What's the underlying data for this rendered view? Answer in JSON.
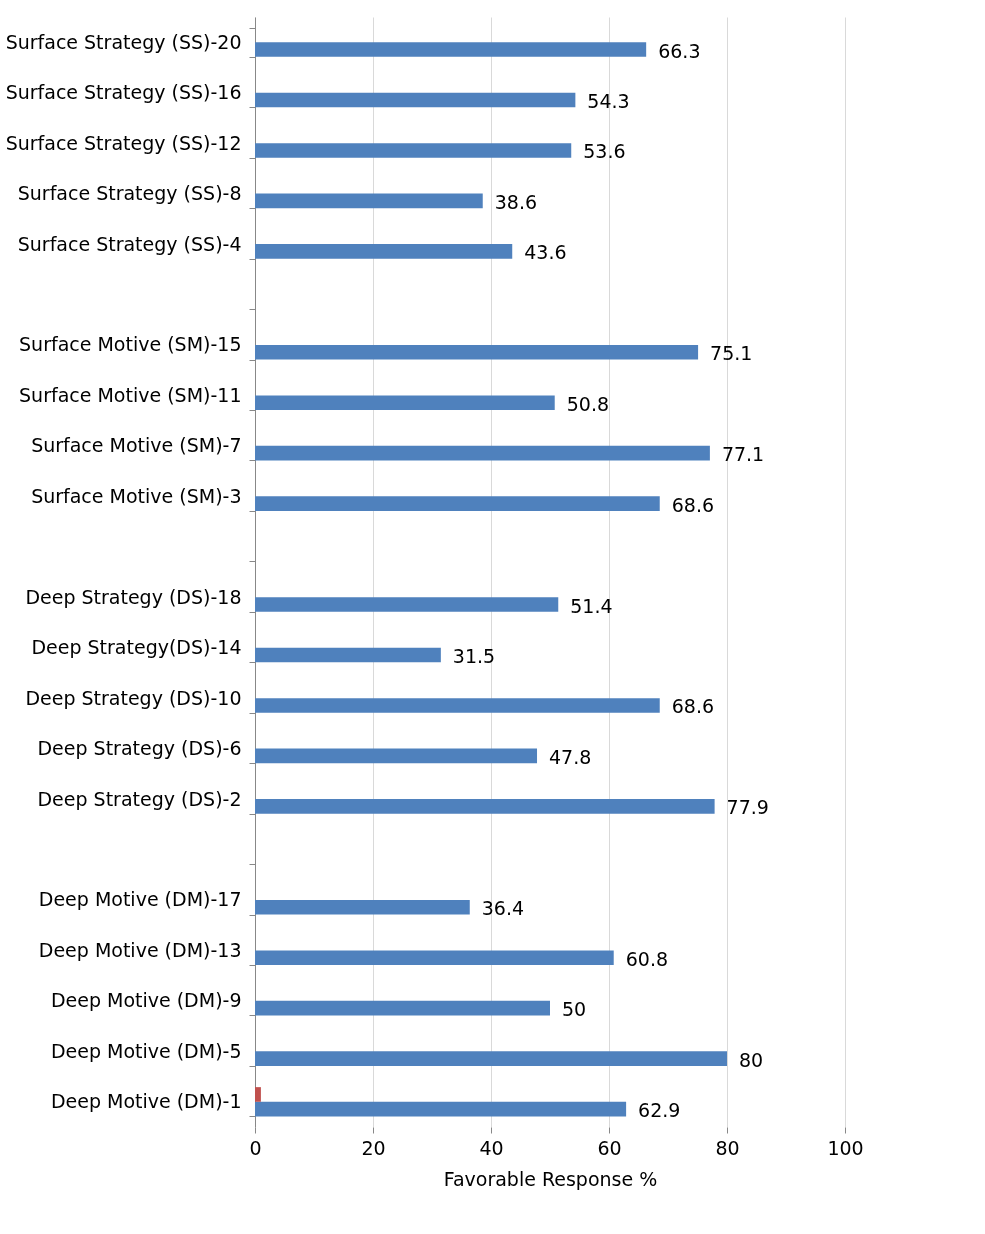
{
  "chart_data": {
    "type": "bar",
    "orientation": "horizontal",
    "xlabel": "Favorable Response %",
    "categories": [
      "Surface Strategy (SS)-20",
      "Surface Strategy (SS)-16",
      "Surface Strategy (SS)-12",
      "Surface Strategy (SS)-8",
      "Surface Strategy (SS)-4",
      null,
      "Surface Motive (SM)-15",
      "Surface Motive (SM)-11",
      "Surface Motive (SM)-7",
      "Surface Motive (SM)-3",
      null,
      "Deep Strategy (DS)-18",
      "Deep Strategy(DS)-14",
      "Deep Strategy (DS)-10",
      "Deep Strategy (DS)-6",
      "Deep Strategy (DS)-2",
      null,
      "Deep Motive (DM)-17",
      "Deep Motive (DM)-13",
      "Deep Motive (DM)-9",
      "Deep Motive (DM)-5",
      "Deep Motive (DM)-1"
    ],
    "series": [
      {
        "color": "#4f81bd",
        "values": [
          66.3,
          54.3,
          53.6,
          38.6,
          43.6,
          null,
          75.1,
          50.8,
          77.1,
          68.6,
          null,
          51.4,
          31.5,
          68.6,
          47.8,
          77.9,
          null,
          36.4,
          60.8,
          50,
          80,
          62.9
        ],
        "value_labels": [
          "66.3",
          "54.3",
          "53.6",
          "38.6",
          "43.6",
          null,
          "75.1",
          "50.8",
          "77.1",
          "68.6",
          null,
          "51.4",
          "31.5",
          "68.6",
          "47.8",
          "77.9",
          null,
          "36.4",
          "60.8",
          "50",
          "80",
          "62.9"
        ]
      },
      {
        "color": "#c0504d",
        "values": [
          null,
          null,
          null,
          null,
          null,
          null,
          null,
          null,
          null,
          null,
          null,
          null,
          null,
          null,
          null,
          null,
          null,
          null,
          null,
          null,
          null,
          1
        ]
      }
    ],
    "xlim": [
      0,
      100
    ],
    "xticks": [
      0,
      20,
      40,
      60,
      80,
      100
    ],
    "grid": "x",
    "legend": false
  }
}
